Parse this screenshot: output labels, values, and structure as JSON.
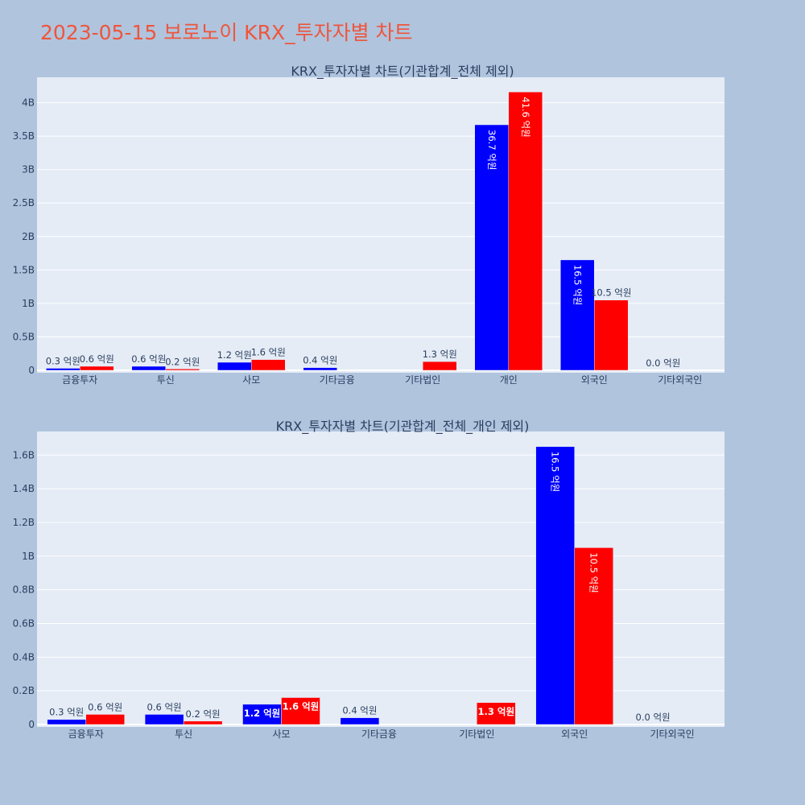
{
  "page_title": "2023-05-15 보로노이 KRX_투자자별 차트",
  "colors": {
    "background": "#b0c4de",
    "plot_bg": "#e5ecf6",
    "grid": "#ffffff",
    "title": "#ef553b",
    "text": "#2a3f5f",
    "series_blue": "#0000ff",
    "series_red": "#ff0000"
  },
  "chart_data": [
    {
      "type": "bar",
      "title": "KRX_투자자별 차트(기관합계_전체 제외)",
      "categories": [
        "금융투자",
        "투신",
        "사모",
        "기타금융",
        "기타법인",
        "개인",
        "외국인",
        "기타외국인"
      ],
      "series": [
        {
          "color": "#0000ff",
          "values": [
            30000000,
            60000000,
            120000000,
            40000000,
            0,
            3670000000,
            1650000000,
            0
          ],
          "labels": [
            "0.3 억원",
            "0.6 억원",
            "1.2 억원",
            "0.4 억원",
            "",
            "36.7 억원",
            "16.5 억원",
            "0.0 억원"
          ]
        },
        {
          "color": "#ff0000",
          "values": [
            60000000,
            20000000,
            160000000,
            0,
            130000000,
            4160000000,
            1050000000,
            0
          ],
          "labels": [
            "0.6 억원",
            "0.2 억원",
            "1.6 억원",
            "",
            "1.3 억원",
            "41.6 억원",
            "10.5 억원",
            ""
          ]
        }
      ],
      "y_ticks": [
        0,
        500000000,
        1000000000,
        1500000000,
        2000000000,
        2500000000,
        3000000000,
        3500000000,
        4000000000
      ],
      "y_tick_labels": [
        "0",
        "0.5B",
        "1B",
        "1.5B",
        "2B",
        "2.5B",
        "3B",
        "3.5B",
        "4B"
      ],
      "ylim": [
        0,
        4380000000
      ],
      "grid": true,
      "legend": "none"
    },
    {
      "type": "bar",
      "title": "KRX_투자자별 차트(기관합계_전체_개인 제외)",
      "categories": [
        "금융투자",
        "투신",
        "사모",
        "기타금융",
        "기타법인",
        "외국인",
        "기타외국인"
      ],
      "series": [
        {
          "color": "#0000ff",
          "values": [
            30000000,
            60000000,
            120000000,
            40000000,
            0,
            1650000000,
            0
          ],
          "labels": [
            "0.3 억원",
            "0.6 억원",
            "1.2 억원",
            "0.4 억원",
            "",
            "16.5 억원",
            "0.0 억원"
          ]
        },
        {
          "color": "#ff0000",
          "values": [
            60000000,
            20000000,
            160000000,
            0,
            130000000,
            1050000000,
            0
          ],
          "labels": [
            "0.6 억원",
            "0.2 억원",
            "1.6 억원",
            "",
            "1.3 억원",
            "10.5 억원",
            ""
          ]
        }
      ],
      "y_ticks": [
        0,
        200000000,
        400000000,
        600000000,
        800000000,
        1000000000,
        1200000000,
        1400000000,
        1600000000
      ],
      "y_tick_labels": [
        "0",
        "0.2B",
        "0.4B",
        "0.6B",
        "0.8B",
        "1B",
        "1.2B",
        "1.4B",
        "1.6B"
      ],
      "ylim": [
        0,
        1740000000
      ],
      "grid": true,
      "legend": "none"
    }
  ]
}
